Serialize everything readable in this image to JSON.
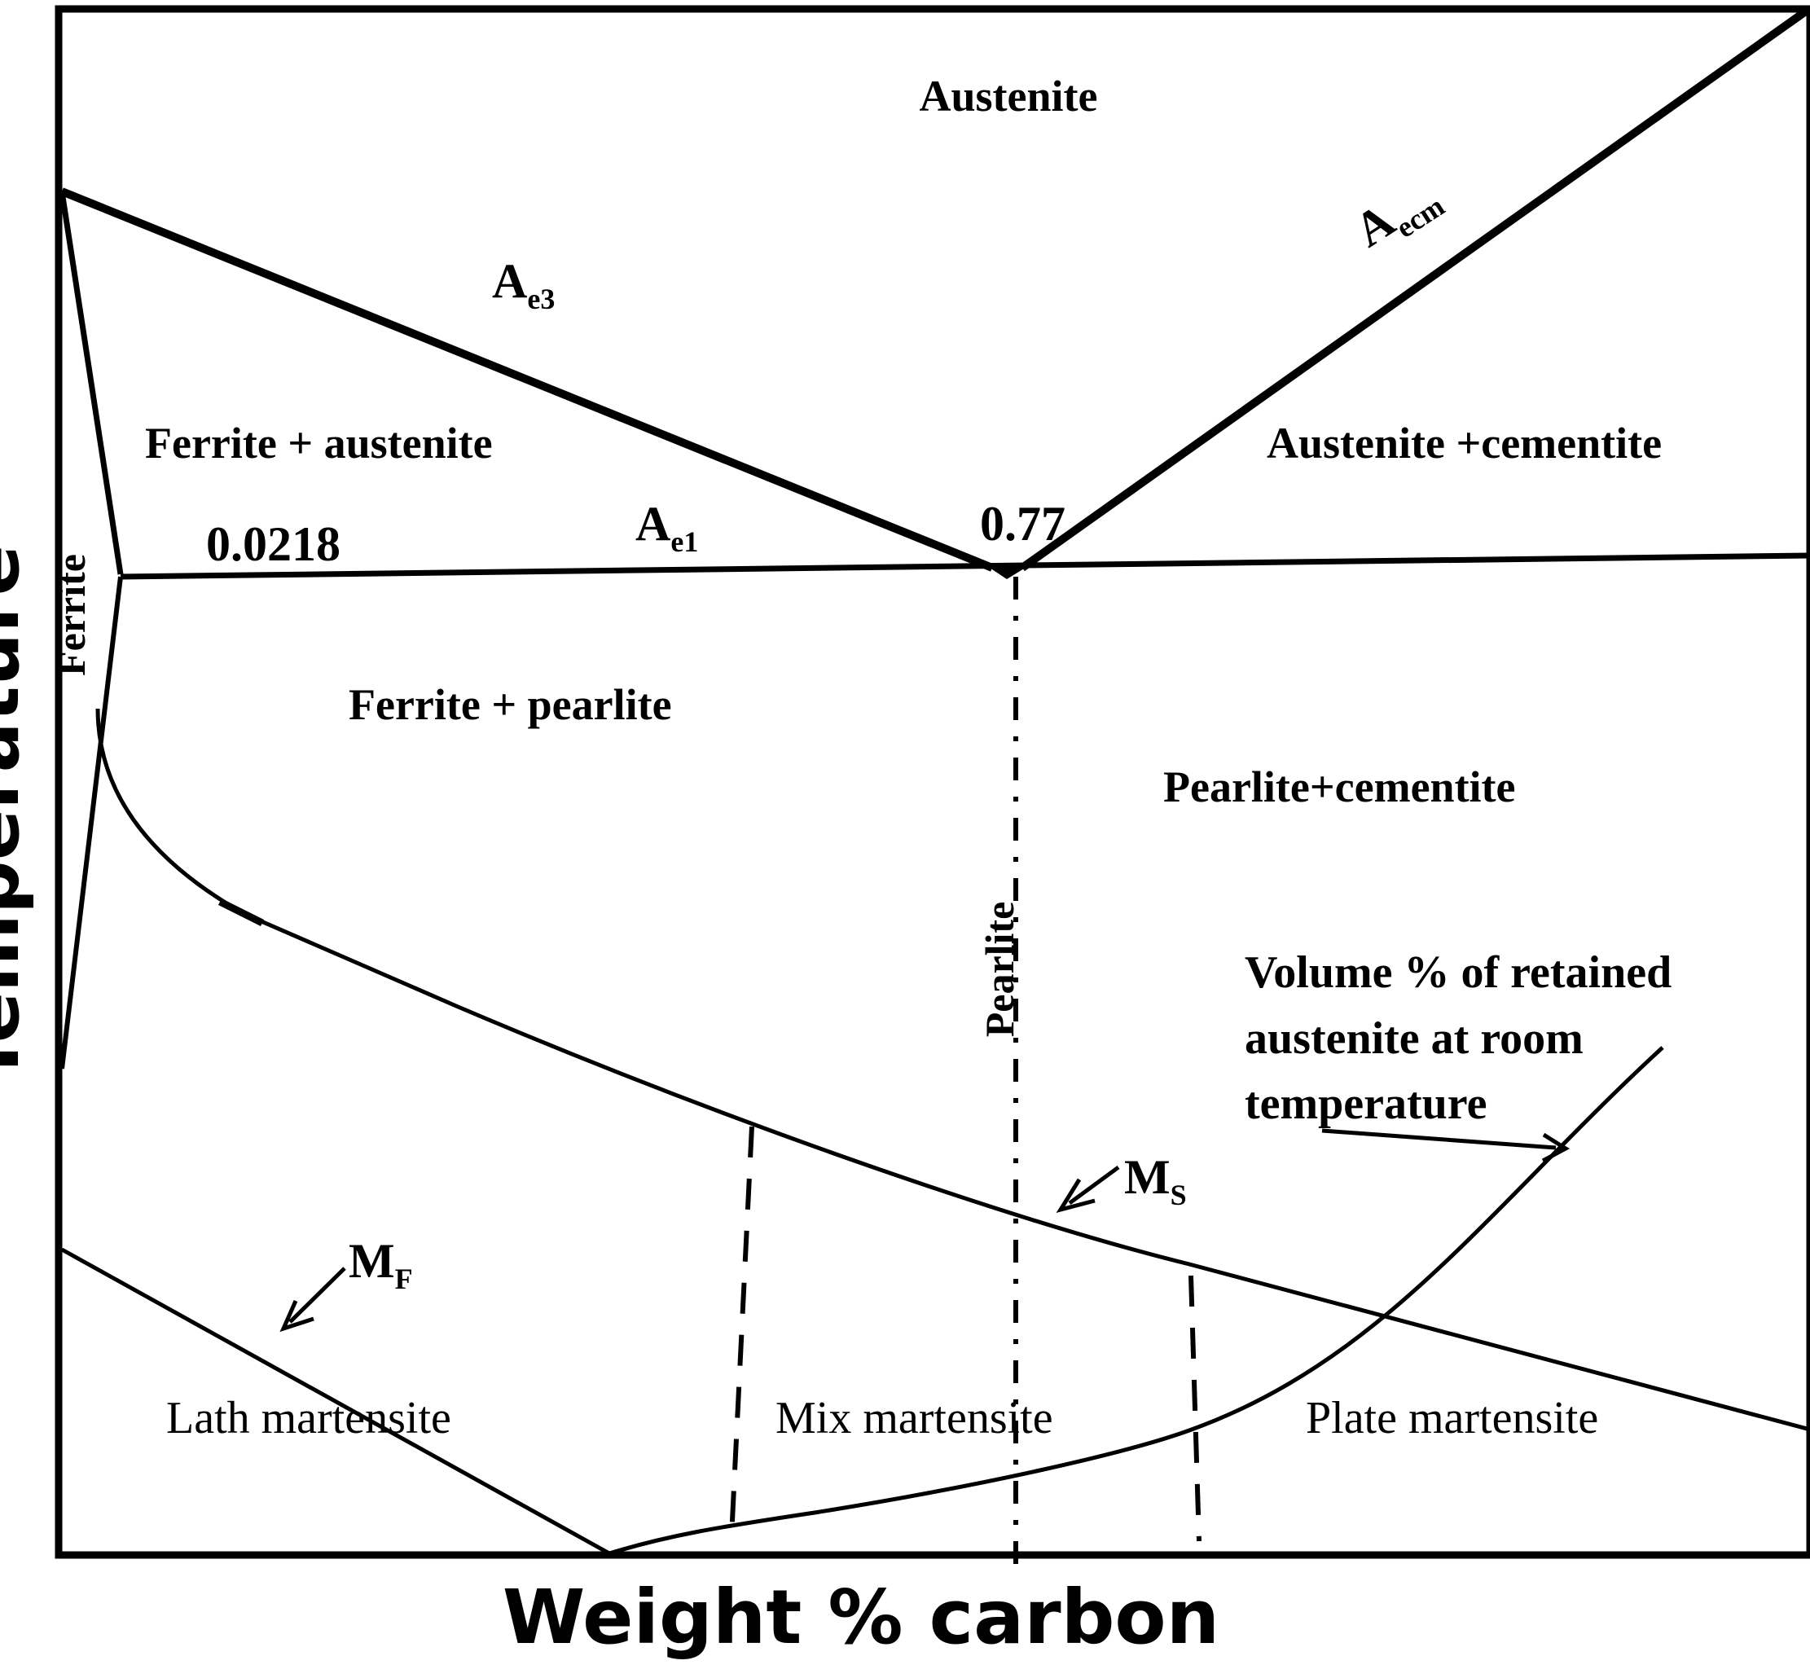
{
  "diagram": {
    "x_axis_label": "Weight %  carbon",
    "y_axis_label": "Temperature",
    "regions": {
      "austenite": "Austenite",
      "ferrite_austenite": "Ferrite + austenite",
      "austenite_cementite": "Austenite +cementite",
      "ferrite_pearlite": "Ferrite + pearlite",
      "pearlite_cementite": "Pearlite+cementite",
      "ferrite": "Ferrite",
      "pearlite": "Pearlite",
      "lath_martensite": "Lath  martensite",
      "mix_martensite": "Mix martensite",
      "plate_martensite": "Plate martensite"
    },
    "lines": {
      "ae3": {
        "main": "A",
        "sub": "e3"
      },
      "aecm": {
        "main": "A",
        "sub": "ecm"
      },
      "ae1": {
        "main": "A",
        "sub": "e1"
      },
      "ms": {
        "main": "M",
        "sub": "S"
      },
      "mf": {
        "main": "M",
        "sub": "F"
      }
    },
    "compositions": {
      "ferrite_limit": "0.0218",
      "eutectoid": "0.77"
    },
    "retained_austenite_note": [
      "Volume % of retained",
      "austenite at room",
      "temperature"
    ]
  }
}
